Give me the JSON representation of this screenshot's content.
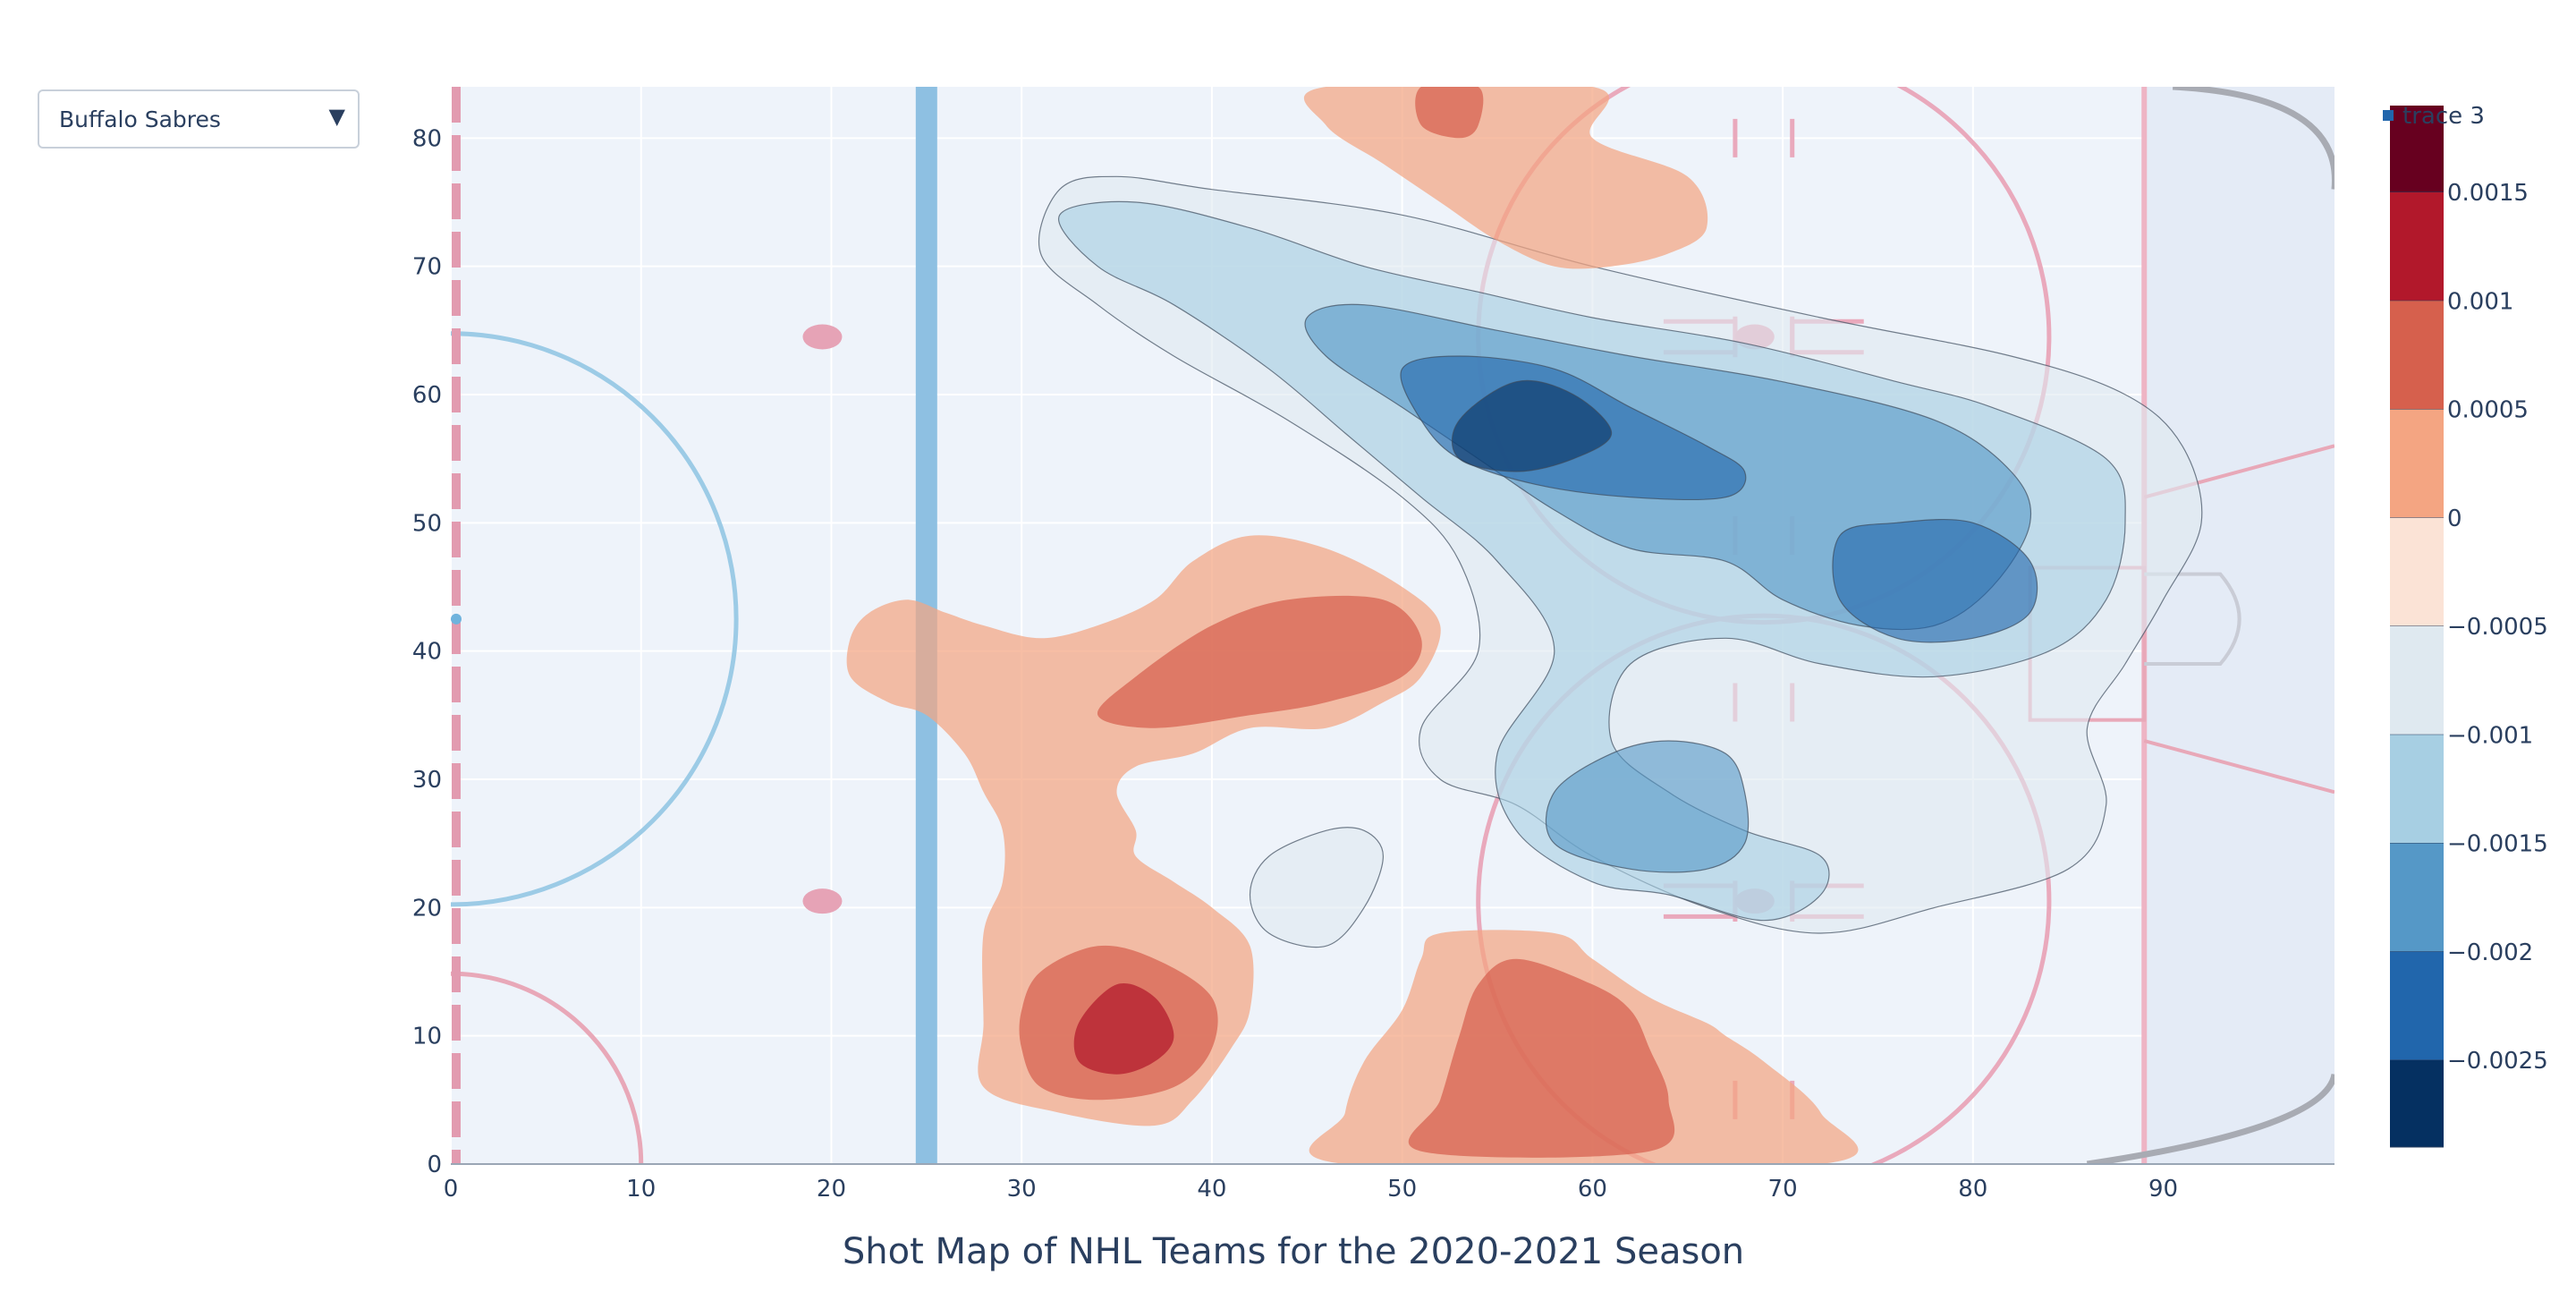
{
  "dropdown": {
    "selected": "Buffalo Sabres"
  },
  "chart_data": {
    "type": "contour",
    "title": "Shot Map of NHL Teams for the 2020-2021 Season",
    "xlabel": "",
    "ylabel": "",
    "xlim": [
      0,
      99
    ],
    "ylim": [
      0,
      84
    ],
    "x_ticks": [
      0,
      10,
      20,
      30,
      40,
      50,
      60,
      70,
      80,
      90
    ],
    "y_ticks": [
      0,
      10,
      20,
      30,
      40,
      50,
      60,
      70,
      80
    ],
    "grid": true,
    "legend": {
      "entries": [
        "trace 3"
      ],
      "position": "top-right"
    },
    "colorbar": {
      "ticks": [
        "0.0015",
        "0.001",
        "0.0005",
        "0",
        "−0.0005",
        "−0.001",
        "−0.0015",
        "−0.002",
        "−0.0025"
      ],
      "tick_values": [
        0.0015,
        0.001,
        0.0005,
        0,
        -0.0005,
        -0.001,
        -0.0015,
        -0.002,
        -0.0025
      ],
      "range": [
        -0.0029,
        0.0019
      ],
      "levels": [
        {
          "from": 0.0015,
          "to": 0.0019,
          "color": "#67001f"
        },
        {
          "from": 0.001,
          "to": 0.0015,
          "color": "#b2182b"
        },
        {
          "from": 0.0005,
          "to": 0.001,
          "color": "#d6604d"
        },
        {
          "from": 0,
          "to": 0.0005,
          "color": "#f4a582"
        },
        {
          "from": -0.0005,
          "to": 0,
          "color": "#fbe3d6"
        },
        {
          "from": -0.001,
          "to": -0.0005,
          "color": "#dfe9f0"
        },
        {
          "from": -0.0015,
          "to": -0.001,
          "color": "#a7cfe3"
        },
        {
          "from": -0.002,
          "to": -0.0015,
          "color": "#5598c7"
        },
        {
          "from": -0.0025,
          "to": -0.002,
          "color": "#2166ac"
        },
        {
          "from": -0.0029,
          "to": -0.0025,
          "color": "#053061"
        }
      ]
    },
    "rink": {
      "blue_line_x": 25,
      "goal_line_x": 89,
      "center_line_x": 0,
      "faceoff_circles": [
        {
          "x": 69,
          "y": 64.5,
          "r": 15
        },
        {
          "x": 69,
          "y": 20.5,
          "r": 15
        }
      ],
      "faceoff_dots": [
        {
          "x": 20,
          "y": 64.5
        },
        {
          "x": 20,
          "y": 20.5
        },
        {
          "x": 69,
          "y": 64.5
        },
        {
          "x": 69,
          "y": 20.5
        }
      ],
      "center_circle": {
        "x": 0,
        "y": 42.5,
        "r": 15
      },
      "crease_center": {
        "x": 89,
        "y": 42.5
      }
    },
    "regions": [
      {
        "sign": "negative",
        "level": -0.0005,
        "points": [
          [
            43,
            24
          ],
          [
            46,
            26
          ],
          [
            48,
            26
          ],
          [
            49,
            24
          ],
          [
            48,
            20
          ],
          [
            46,
            17
          ],
          [
            43,
            18
          ],
          [
            42,
            21
          ]
        ]
      },
      {
        "sign": "negative",
        "level": -0.0005,
        "points": [
          [
            32,
            76
          ],
          [
            35,
            77
          ],
          [
            40,
            76
          ],
          [
            50,
            74
          ],
          [
            60,
            70
          ],
          [
            72,
            66
          ],
          [
            82,
            63
          ],
          [
            88,
            60
          ],
          [
            91,
            56
          ],
          [
            92,
            50
          ],
          [
            90,
            44
          ],
          [
            88,
            39
          ],
          [
            86,
            34
          ],
          [
            87,
            28
          ],
          [
            85,
            23
          ],
          [
            78,
            20
          ],
          [
            72,
            18
          ],
          [
            66,
            20
          ],
          [
            60,
            24
          ],
          [
            56,
            28
          ],
          [
            52,
            30
          ],
          [
            51,
            34
          ],
          [
            54,
            40
          ],
          [
            53,
            47
          ],
          [
            50,
            52
          ],
          [
            44,
            58
          ],
          [
            38,
            63
          ],
          [
            34,
            67
          ],
          [
            31,
            71
          ]
        ]
      },
      {
        "sign": "negative",
        "level": -0.001,
        "points": [
          [
            32,
            74
          ],
          [
            36,
            75
          ],
          [
            42,
            73
          ],
          [
            48,
            70
          ],
          [
            54,
            68
          ],
          [
            60,
            66
          ],
          [
            68,
            64
          ],
          [
            76,
            61
          ],
          [
            81,
            59
          ],
          [
            87,
            55
          ],
          [
            88,
            50
          ],
          [
            87,
            44
          ],
          [
            84,
            40
          ],
          [
            78,
            38
          ],
          [
            72,
            39
          ],
          [
            67,
            41
          ],
          [
            62,
            39
          ],
          [
            61,
            33
          ],
          [
            64,
            29
          ],
          [
            68,
            26
          ],
          [
            72,
            24
          ],
          [
            72,
            21
          ],
          [
            69,
            19
          ],
          [
            64,
            21
          ],
          [
            60,
            22
          ],
          [
            56,
            26
          ],
          [
            55,
            32
          ],
          [
            58,
            40
          ],
          [
            55,
            47
          ],
          [
            51,
            52
          ],
          [
            47,
            57
          ],
          [
            43,
            62
          ],
          [
            38,
            67
          ],
          [
            34,
            70
          ]
        ]
      },
      {
        "sign": "negative",
        "level": -0.0015,
        "points": [
          [
            45,
            66
          ],
          [
            48,
            67
          ],
          [
            55,
            65
          ],
          [
            62,
            63
          ],
          [
            70,
            61
          ],
          [
            78,
            58
          ],
          [
            82,
            54
          ],
          [
            83,
            50
          ],
          [
            81,
            45
          ],
          [
            78,
            42
          ],
          [
            74,
            42
          ],
          [
            70,
            44
          ],
          [
            67,
            47
          ],
          [
            62,
            48
          ],
          [
            58,
            51
          ],
          [
            54,
            55
          ],
          [
            50,
            59
          ],
          [
            46,
            63
          ]
        ]
      },
      {
        "sign": "negative",
        "level": -0.0015,
        "points": [
          [
            58,
            29
          ],
          [
            61,
            32
          ],
          [
            64,
            33
          ],
          [
            67,
            32
          ],
          [
            68,
            29
          ],
          [
            68,
            25
          ],
          [
            66,
            23
          ],
          [
            62,
            23
          ],
          [
            58,
            25
          ]
        ]
      },
      {
        "sign": "negative",
        "level": -0.002,
        "points": [
          [
            50,
            62
          ],
          [
            53,
            63
          ],
          [
            58,
            62
          ],
          [
            62,
            59
          ],
          [
            66,
            56
          ],
          [
            68,
            54
          ],
          [
            67,
            52
          ],
          [
            62,
            52
          ],
          [
            57,
            53
          ],
          [
            53,
            55
          ],
          [
            51,
            58
          ]
        ]
      },
      {
        "sign": "negative",
        "level": -0.002,
        "points": [
          [
            73,
            49
          ],
          [
            76,
            50
          ],
          [
            80,
            50
          ],
          [
            83,
            47
          ],
          [
            83,
            43
          ],
          [
            80,
            41
          ],
          [
            76,
            41
          ],
          [
            73,
            44
          ]
        ]
      },
      {
        "sign": "negative",
        "level": -0.0025,
        "points": [
          [
            53,
            58
          ],
          [
            56,
            61
          ],
          [
            59,
            60
          ],
          [
            61,
            57
          ],
          [
            59,
            55
          ],
          [
            56,
            54
          ],
          [
            53,
            55
          ]
        ]
      },
      {
        "sign": "positive",
        "level": 0,
        "points": [
          [
            46,
            84
          ],
          [
            60,
            84
          ],
          [
            60,
            80
          ],
          [
            65,
            77
          ],
          [
            66,
            73
          ],
          [
            64,
            71
          ],
          [
            61,
            70
          ],
          [
            58,
            70
          ],
          [
            55,
            72
          ],
          [
            52,
            75
          ],
          [
            49,
            78
          ],
          [
            46,
            81
          ]
        ]
      },
      {
        "sign": "positive",
        "level": 0,
        "points": [
          [
            21,
            41
          ],
          [
            22,
            43
          ],
          [
            24,
            44
          ],
          [
            26,
            43
          ],
          [
            28,
            42
          ],
          [
            31,
            41
          ],
          [
            34,
            42
          ],
          [
            37,
            44
          ],
          [
            39,
            47
          ],
          [
            42,
            49
          ],
          [
            46,
            48
          ],
          [
            50,
            45
          ],
          [
            52,
            42
          ],
          [
            51,
            38
          ],
          [
            49,
            36
          ],
          [
            46,
            34
          ],
          [
            42,
            34
          ],
          [
            39,
            32
          ],
          [
            36,
            31
          ],
          [
            35,
            29
          ],
          [
            36,
            26
          ],
          [
            36,
            24
          ],
          [
            38,
            22
          ],
          [
            40,
            20
          ],
          [
            42,
            17
          ],
          [
            42,
            12
          ],
          [
            41,
            9
          ],
          [
            39,
            5
          ],
          [
            37,
            3
          ],
          [
            32,
            4
          ],
          [
            28,
            6
          ],
          [
            28,
            11
          ],
          [
            28,
            18
          ],
          [
            29,
            22
          ],
          [
            29,
            26
          ],
          [
            28,
            29
          ],
          [
            27,
            32
          ],
          [
            25,
            35
          ],
          [
            23,
            36
          ],
          [
            21,
            38
          ]
        ]
      },
      {
        "sign": "positive",
        "level": 0,
        "points": [
          [
            47,
            0
          ],
          [
            72,
            0
          ],
          [
            72,
            4
          ],
          [
            69,
            8
          ],
          [
            67,
            10
          ],
          [
            66,
            11
          ],
          [
            63,
            13
          ],
          [
            60,
            16
          ],
          [
            58,
            18
          ],
          [
            52,
            18
          ],
          [
            51,
            16
          ],
          [
            50,
            12
          ],
          [
            48,
            8
          ],
          [
            47,
            4
          ]
        ]
      },
      {
        "sign": "positive",
        "level": 0.0005,
        "points": [
          [
            34,
            35
          ],
          [
            36,
            38
          ],
          [
            40,
            42
          ],
          [
            44,
            44
          ],
          [
            49,
            44
          ],
          [
            51,
            41
          ],
          [
            50,
            38
          ],
          [
            46,
            36
          ],
          [
            42,
            35
          ],
          [
            37,
            34
          ]
        ]
      },
      {
        "sign": "positive",
        "level": 0.0005,
        "points": [
          [
            30,
            12
          ],
          [
            31,
            15
          ],
          [
            34,
            17
          ],
          [
            37,
            16
          ],
          [
            40,
            13
          ],
          [
            40,
            9
          ],
          [
            38,
            6
          ],
          [
            34,
            5
          ],
          [
            31,
            6
          ],
          [
            30,
            9
          ]
        ]
      },
      {
        "sign": "positive",
        "level": 0.0005,
        "points": [
          [
            51,
            1
          ],
          [
            63,
            1
          ],
          [
            64,
            5
          ],
          [
            63,
            9
          ],
          [
            62,
            12
          ],
          [
            60,
            14
          ],
          [
            56,
            16
          ],
          [
            54,
            14
          ],
          [
            53,
            10
          ],
          [
            52,
            5
          ]
        ]
      },
      {
        "sign": "positive",
        "level": 0.0005,
        "points": [
          [
            51,
            84
          ],
          [
            54,
            84
          ],
          [
            54,
            81
          ],
          [
            53,
            80
          ],
          [
            51,
            81
          ]
        ]
      },
      {
        "sign": "positive",
        "level": 0.001,
        "points": [
          [
            33,
            11
          ],
          [
            35,
            14
          ],
          [
            37,
            13
          ],
          [
            38,
            10
          ],
          [
            37,
            8
          ],
          [
            35,
            7
          ],
          [
            33,
            8
          ]
        ]
      }
    ]
  }
}
